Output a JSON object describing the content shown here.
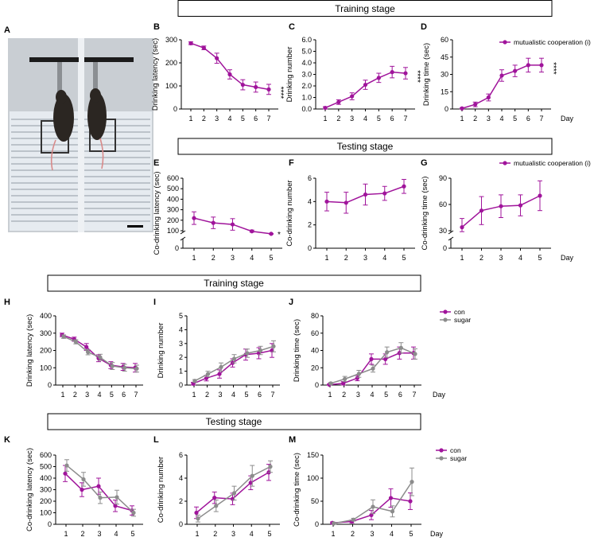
{
  "figure": {
    "panel_letters": [
      "A",
      "B",
      "C",
      "D",
      "E",
      "F",
      "G",
      "H",
      "I",
      "J",
      "K",
      "L",
      "M"
    ],
    "stage_labels": [
      "Training stage",
      "Testing stage",
      "Training stage",
      "Testing stage"
    ],
    "photo": {
      "colors": {
        "background": "#c9ced3",
        "floor": "#e6ebf0",
        "mouse": "#2b2622"
      }
    }
  },
  "colors": {
    "magenta": "#a0149b",
    "gray": "#8c8c8c"
  },
  "chart_data": [
    {
      "panel": "B",
      "type": "line",
      "ylabel": "Drinking latency (sec)",
      "xlabel": "",
      "x": [
        1,
        2,
        3,
        4,
        5,
        6,
        7
      ],
      "ylim": [
        0,
        300
      ],
      "yticks": [
        0,
        100,
        200,
        300
      ],
      "series": [
        {
          "color": "magenta",
          "values": [
            285,
            265,
            220,
            150,
            105,
            95,
            85
          ],
          "errors": [
            6,
            8,
            22,
            20,
            22,
            22,
            22
          ]
        }
      ],
      "annotation": "****"
    },
    {
      "panel": "C",
      "type": "line",
      "ylabel": "Drinking number",
      "xlabel": "",
      "x": [
        1,
        2,
        3,
        4,
        5,
        6,
        7
      ],
      "ylim": [
        0,
        6
      ],
      "yticks": [
        0.0,
        1.0,
        2.0,
        3.0,
        4.0,
        5.0,
        6.0
      ],
      "ytick_labels": [
        "0.0",
        "1.0",
        "2.0",
        "3.0",
        "4.0",
        "5.0",
        "6.0"
      ],
      "series": [
        {
          "color": "magenta",
          "values": [
            0.1,
            0.6,
            1.1,
            2.1,
            2.7,
            3.2,
            3.1
          ],
          "errors": [
            0.1,
            0.2,
            0.3,
            0.4,
            0.4,
            0.5,
            0.5
          ]
        }
      ],
      "annotation": "****"
    },
    {
      "panel": "D",
      "type": "line",
      "ylabel": "Drinking time (sec)",
      "xlabel": "Day",
      "x": [
        1,
        2,
        3,
        4,
        5,
        6,
        7
      ],
      "ylim": [
        0,
        60
      ],
      "yticks": [
        0,
        15,
        30,
        45,
        60
      ],
      "series": [
        {
          "name": "mutualistic cooperation (i)",
          "color": "magenta",
          "values": [
            0.5,
            4,
            10,
            29,
            33,
            38,
            38
          ],
          "errors": [
            0.5,
            2,
            3,
            5,
            5,
            6,
            6
          ]
        }
      ],
      "annotation": "****"
    },
    {
      "panel": "E",
      "type": "line",
      "ylabel": "Co-drinking latency (sec)",
      "xlabel": "",
      "x": [
        1,
        2,
        3,
        4,
        5
      ],
      "ylim": [
        0,
        600
      ],
      "axis_break": true,
      "yticks": [
        0,
        100,
        200,
        300,
        400,
        500,
        600
      ],
      "series": [
        {
          "color": "magenta",
          "values": [
            220,
            175,
            160,
            88,
            35
          ],
          "errors": [
            60,
            55,
            55,
            18,
            8
          ]
        }
      ],
      "annotation": "*"
    },
    {
      "panel": "F",
      "type": "line",
      "ylabel": "Co-drinking number",
      "xlabel": "",
      "x": [
        1,
        2,
        3,
        4,
        5
      ],
      "ylim": [
        0,
        6
      ],
      "yticks": [
        0,
        2,
        4,
        6
      ],
      "series": [
        {
          "color": "magenta",
          "values": [
            4.0,
            3.9,
            4.6,
            4.7,
            5.3
          ],
          "errors": [
            0.8,
            0.9,
            0.9,
            0.6,
            0.6
          ]
        }
      ]
    },
    {
      "panel": "G",
      "type": "line",
      "ylabel": "Co-drinking time (sec)",
      "xlabel": "Day",
      "x": [
        1,
        2,
        3,
        4,
        5
      ],
      "ylim": [
        0,
        90
      ],
      "axis_break": true,
      "yticks": [
        0,
        30,
        60,
        90
      ],
      "series": [
        {
          "name": "mutualistic cooperation (i)",
          "color": "magenta",
          "values": [
            34,
            53,
            58,
            59,
            70
          ],
          "errors": [
            10,
            16,
            13,
            12,
            17
          ]
        }
      ]
    },
    {
      "panel": "H",
      "type": "line",
      "ylabel": "Drinking latency (sec)",
      "xlabel": "",
      "x": [
        1,
        2,
        3,
        4,
        5,
        6,
        7
      ],
      "ylim": [
        0,
        400
      ],
      "yticks": [
        0,
        100,
        200,
        300,
        400
      ],
      "series": [
        {
          "color": "magenta",
          "values": [
            290,
            265,
            220,
            155,
            115,
            105,
            100
          ],
          "errors": [
            10,
            12,
            20,
            20,
            20,
            20,
            25
          ]
        },
        {
          "color": "gray",
          "values": [
            280,
            250,
            190,
            160,
            110,
            100,
            95
          ],
          "errors": [
            10,
            12,
            15,
            18,
            20,
            20,
            20
          ]
        }
      ]
    },
    {
      "panel": "I",
      "type": "line",
      "ylabel": "Drinking number",
      "xlabel": "",
      "x": [
        1,
        2,
        3,
        4,
        5,
        6,
        7
      ],
      "ylim": [
        0,
        5
      ],
      "yticks": [
        0,
        1,
        2,
        3,
        4,
        5
      ],
      "series": [
        {
          "color": "magenta",
          "values": [
            0.1,
            0.5,
            0.8,
            1.6,
            2.2,
            2.3,
            2.5
          ],
          "errors": [
            0.1,
            0.2,
            0.3,
            0.3,
            0.4,
            0.4,
            0.5
          ]
        },
        {
          "color": "gray",
          "values": [
            0.3,
            0.8,
            1.3,
            1.9,
            2.3,
            2.5,
            2.8
          ],
          "errors": [
            0.1,
            0.2,
            0.3,
            0.3,
            0.3,
            0.3,
            0.4
          ]
        }
      ]
    },
    {
      "panel": "J",
      "type": "line",
      "ylabel": "Drinking time (sec)",
      "xlabel": "Day",
      "x": [
        1,
        2,
        3,
        4,
        5,
        6,
        7
      ],
      "ylim": [
        0,
        80
      ],
      "yticks": [
        0,
        20,
        40,
        60,
        80
      ],
      "series": [
        {
          "name": "con",
          "color": "magenta",
          "values": [
            0.5,
            2,
            8,
            30,
            30,
            37,
            37
          ],
          "errors": [
            0.5,
            2,
            3,
            6,
            6,
            7,
            7
          ]
        },
        {
          "name": "sugar",
          "color": "gray",
          "values": [
            2,
            7,
            13,
            19,
            38,
            43,
            36
          ],
          "errors": [
            1,
            3,
            4,
            4,
            6,
            6,
            6
          ]
        }
      ]
    },
    {
      "panel": "K",
      "type": "line",
      "ylabel": "Co-drinking latency (sec)",
      "xlabel": "",
      "x": [
        1,
        2,
        3,
        4,
        5
      ],
      "ylim": [
        0,
        600
      ],
      "yticks": [
        0,
        100,
        200,
        300,
        400,
        500,
        600
      ],
      "series": [
        {
          "color": "magenta",
          "values": [
            440,
            300,
            330,
            160,
            120
          ],
          "errors": [
            70,
            60,
            70,
            50,
            40
          ]
        },
        {
          "color": "gray",
          "values": [
            510,
            390,
            230,
            235,
            100
          ],
          "errors": [
            50,
            60,
            50,
            60,
            30
          ]
        }
      ]
    },
    {
      "panel": "L",
      "type": "line",
      "ylabel": "Co-drinking number",
      "xlabel": "",
      "x": [
        1,
        2,
        3,
        4,
        5
      ],
      "ylim": [
        0,
        6
      ],
      "yticks": [
        0,
        2,
        4,
        6
      ],
      "series": [
        {
          "color": "magenta",
          "values": [
            1.0,
            2.3,
            2.2,
            3.6,
            4.5
          ],
          "errors": [
            0.5,
            0.5,
            0.5,
            0.6,
            0.7
          ]
        },
        {
          "color": "gray",
          "values": [
            0.5,
            1.6,
            2.7,
            4.2,
            5.0
          ],
          "errors": [
            0.3,
            0.5,
            0.6,
            0.9,
            0.5
          ]
        }
      ]
    },
    {
      "panel": "M",
      "type": "line",
      "ylabel": "Co-drinking time (sec)",
      "xlabel": "Day",
      "x": [
        1,
        2,
        3,
        4,
        5
      ],
      "ylim": [
        0,
        150
      ],
      "yticks": [
        0,
        50,
        100,
        150
      ],
      "series": [
        {
          "name": "con",
          "color": "magenta",
          "values": [
            3,
            6,
            20,
            57,
            50
          ],
          "errors": [
            2,
            3,
            10,
            20,
            18
          ]
        },
        {
          "name": "sugar",
          "color": "gray",
          "values": [
            2,
            10,
            38,
            28,
            92
          ],
          "errors": [
            2,
            3,
            15,
            12,
            30
          ]
        }
      ]
    }
  ]
}
